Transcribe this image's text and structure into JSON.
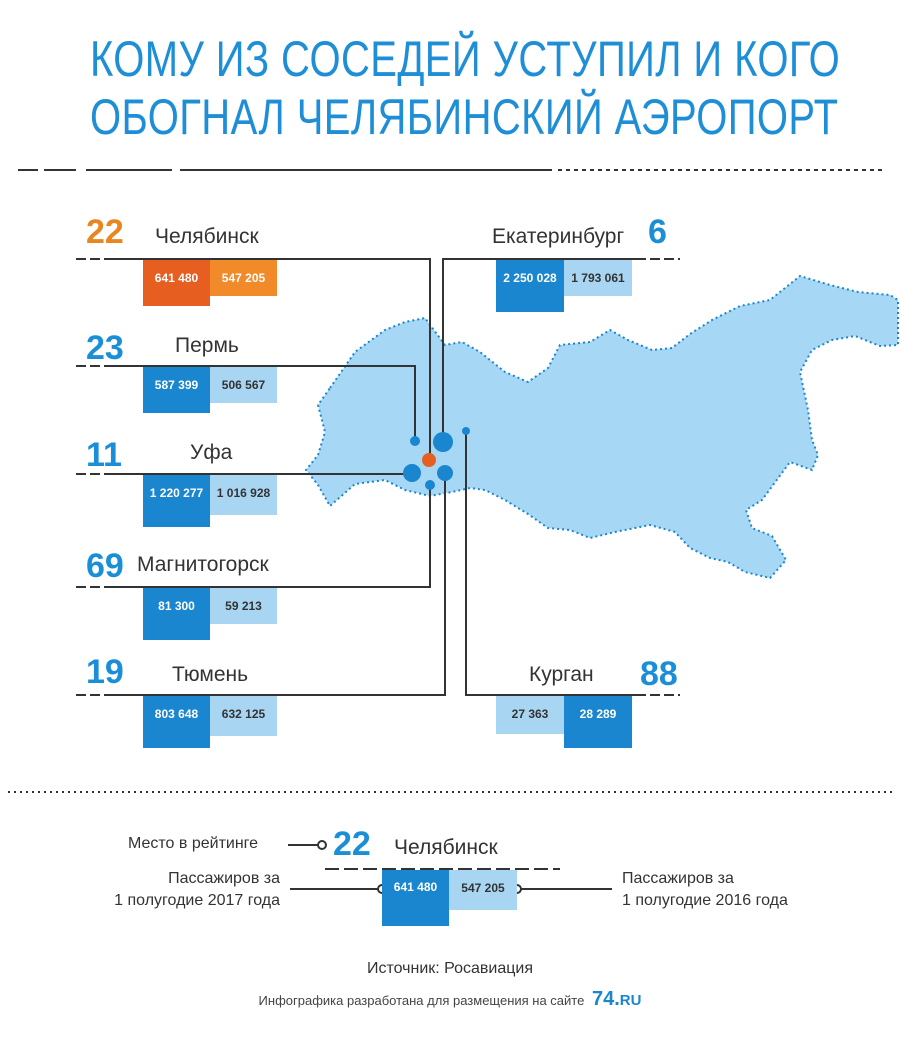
{
  "title": {
    "line1": "КОМУ ИЗ СОСЕДЕЙ УСТУПИЛ И КОГО",
    "line2": "ОБОГНАЛ ЧЕЛЯБИНСКИЙ АЭРОПОРТ"
  },
  "colors": {
    "accent_blue": "#1a86cf",
    "light_blue": "#a8d5f2",
    "orange": "#e65f20",
    "orange_light": "#f18a29",
    "map": "#a6d7f4",
    "rank_blue": "#1a8fd8",
    "rank_orange": "#e9861f"
  },
  "cities": [
    {
      "key": "chelyabinsk",
      "rank": "22",
      "name": "Челябинск",
      "v2017": "641 480",
      "v2016": "547 205",
      "highlight": true
    },
    {
      "key": "perm",
      "rank": "23",
      "name": "Пермь",
      "v2017": "587 399",
      "v2016": "506 567"
    },
    {
      "key": "ufa",
      "rank": "11",
      "name": "Уфа",
      "v2017": "1 220 277",
      "v2016": "1 016 928"
    },
    {
      "key": "magnitogorsk",
      "rank": "69",
      "name": "Магнитогорск",
      "v2017": "81 300",
      "v2016": "59 213"
    },
    {
      "key": "tyumen",
      "rank": "19",
      "name": "Тюмень",
      "v2017": "803 648",
      "v2016": "632 125"
    },
    {
      "key": "ekaterinburg",
      "rank": "6",
      "name": "Екатеринбург",
      "v2017": "2 250 028",
      "v2016": "1 793 061"
    },
    {
      "key": "kurgan",
      "rank": "88",
      "name": "Курган",
      "v2017": "28 289",
      "v2016": "27 363"
    }
  ],
  "legend": {
    "rank_label": "Место в рейтинге",
    "p2017_label_1": "Пассажиров за",
    "p2017_label_2": "1 полугодие 2017 года",
    "p2016_label_1": "Пассажиров за",
    "p2016_label_2": "1 полугодие 2016 года",
    "rank": "22",
    "city": "Челябинск",
    "v2017": "641 480",
    "v2016": "547 205"
  },
  "footer": {
    "source": "Источник: Росавиация",
    "credit": "Инфографика разработана для размещения на сайте",
    "logo_num": "74.",
    "logo_ru": "RU"
  }
}
